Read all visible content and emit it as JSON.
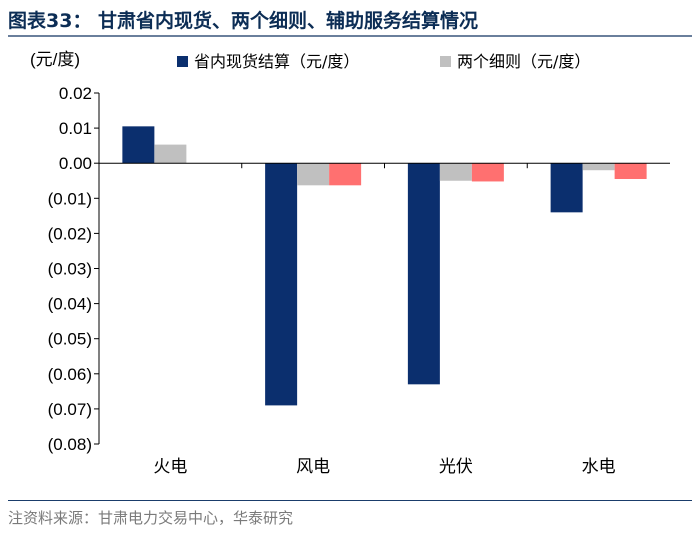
{
  "title": "图表33：  甘肃省内现货、两个细则、辅助服务结算情况",
  "source": "注资料来源：甘肃电力交易中心，华泰研究",
  "chart_data": {
    "type": "bar",
    "unit_label": "(元/度)",
    "categories": [
      "火电",
      "风电",
      "光伏",
      "水电"
    ],
    "series": [
      {
        "name": "省内现货结算（元/度）",
        "color": "#0b2f6e",
        "values": [
          0.0105,
          -0.069,
          -0.063,
          -0.014
        ]
      },
      {
        "name": "两个细则（元/度）",
        "color": "#c0c0c0",
        "values": [
          0.0053,
          -0.0063,
          -0.005,
          -0.002
        ]
      },
      {
        "name": "",
        "color": "#ff7070",
        "values": [
          null,
          -0.0063,
          -0.0052,
          -0.0045
        ]
      }
    ],
    "ylim": [
      -0.08,
      0.02
    ],
    "yticks": [
      0.02,
      0.01,
      0.0,
      -0.01,
      -0.02,
      -0.03,
      -0.04,
      -0.05,
      -0.06,
      -0.07,
      -0.08
    ],
    "ytick_labels": [
      "0.02",
      "0.01",
      "0.00",
      "(0.01)",
      "(0.02)",
      "(0.03)",
      "(0.04)",
      "(0.05)",
      "(0.06)",
      "(0.07)",
      "(0.08)"
    ],
    "legend_position": "top",
    "grid": false
  }
}
